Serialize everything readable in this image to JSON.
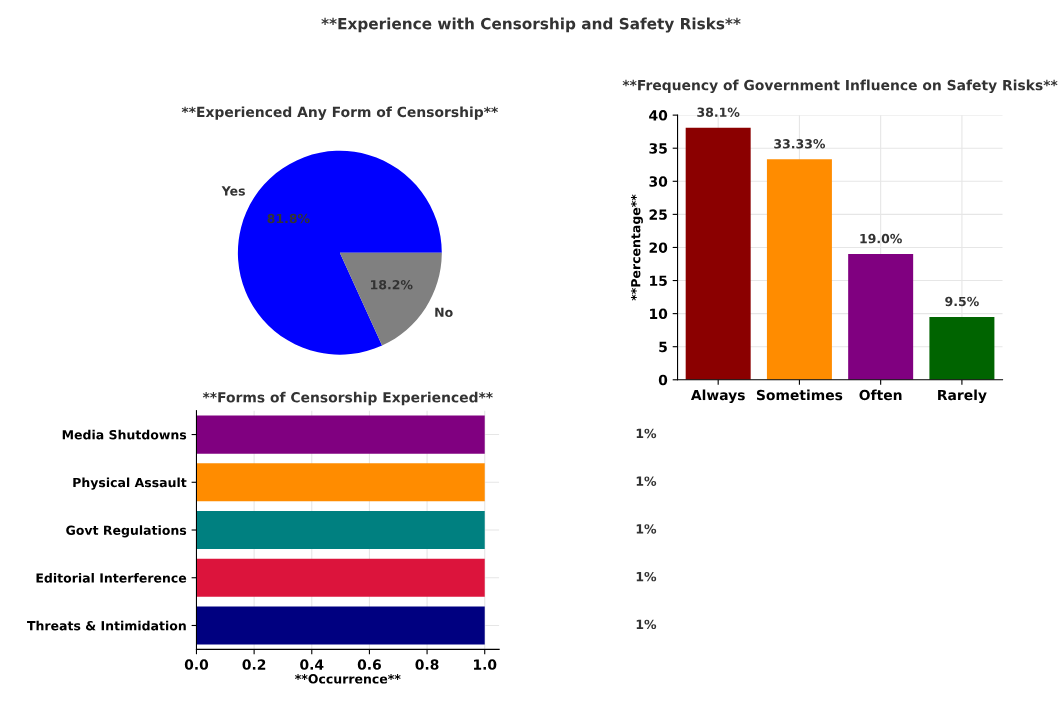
{
  "chart_data": [
    {
      "type": "pie",
      "title": "**Experienced Any Form of Censorship**",
      "annotations": [
        "**Experience with Censorship and Safety Risks**"
      ],
      "categories": [
        "Yes",
        "No"
      ],
      "values": [
        81.8,
        18.2
      ],
      "colors": [
        "#0000ff",
        "#808080"
      ],
      "value_labels": [
        "81.8%",
        "18.2%"
      ]
    },
    {
      "type": "bar",
      "title": "**Frequency of Government Influence on Safety Risks**",
      "ylabel": "**Percentage**",
      "categories": [
        "Always",
        "Sometimes",
        "Often",
        "Rarely"
      ],
      "values": [
        38.1,
        33.33,
        19.0,
        9.5
      ],
      "colors": [
        "#8b0000",
        "#ff8c00",
        "#800080",
        "#006400"
      ],
      "value_labels": [
        "38.1%",
        "33.33%",
        "19.0%",
        "9.5%"
      ],
      "ylim": [
        0,
        40
      ],
      "yticks": [
        0,
        5,
        10,
        15,
        20,
        25,
        30,
        35,
        40
      ],
      "grid": true
    },
    {
      "type": "bar",
      "orientation": "horizontal",
      "title": "**Forms of Censorship Experienced**",
      "xlabel": "**Occurrence**",
      "categories": [
        "Media Shutdowns",
        "Physical Assault",
        "Govt Regulations",
        "Editorial Interference",
        "Threats & Intimidation"
      ],
      "values": [
        1,
        1,
        1,
        1,
        1
      ],
      "colors": [
        "#800080",
        "#ff8c00",
        "#008080",
        "#dc143c",
        "#000080"
      ],
      "value_labels": [
        "1%",
        "1%",
        "1%",
        "1%",
        "1%"
      ],
      "xlim": [
        0,
        1.05
      ],
      "xticks": [
        {
          "value": 0,
          "label": "0.0"
        },
        {
          "value": 0.2,
          "label": "0.2"
        },
        {
          "value": 0.4,
          "label": "0.4"
        },
        {
          "value": 0.6,
          "label": "0.6"
        },
        {
          "value": 0.8,
          "label": "0.8"
        },
        {
          "value": 1.0,
          "label": "1.0"
        }
      ],
      "grid": true
    }
  ]
}
